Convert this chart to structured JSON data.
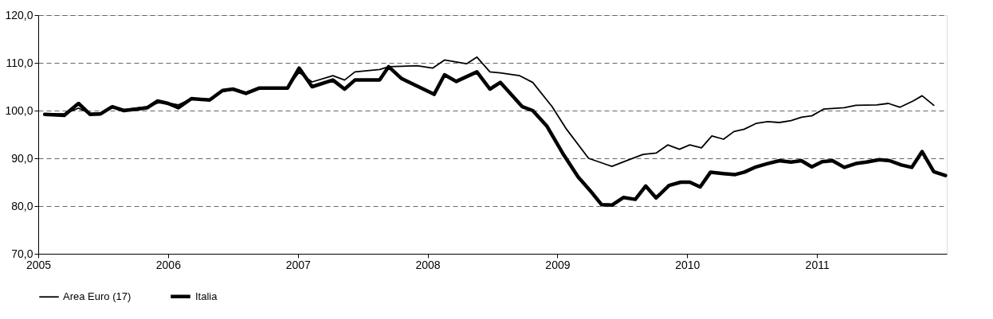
{
  "chart_data": {
    "type": "line",
    "xlim": [
      2005,
      2012
    ],
    "xticks": [
      2005,
      2006,
      2007,
      2008,
      2009,
      2010,
      2011
    ],
    "ylim": [
      70,
      120
    ],
    "yticks": [
      {
        "value": 70,
        "label": "70,0"
      },
      {
        "value": 80,
        "label": "80,0"
      },
      {
        "value": 90,
        "label": "90,0"
      },
      {
        "value": 100,
        "label": "100,0"
      },
      {
        "value": 110,
        "label": "110,0"
      },
      {
        "value": 120,
        "label": "120,0"
      }
    ],
    "grid": "y",
    "legend": "bottom",
    "marker": "none",
    "line_style": "solid",
    "series": [
      {
        "name": "Area Euro (17)",
        "color": "#000000",
        "x": [
          2005.05,
          2005.2,
          2005.31,
          2005.4,
          2005.48,
          2005.57,
          2005.66,
          2005.84,
          2005.92,
          2006.0,
          2006.08,
          2006.18,
          2006.32,
          2006.42,
          2006.5,
          2006.6,
          2006.7,
          2006.92,
          2007.01,
          2007.11,
          2007.27,
          2007.36,
          2007.44,
          2007.63,
          2007.7,
          2007.92,
          2008.04,
          2008.13,
          2008.3,
          2008.38,
          2008.48,
          2008.56,
          2008.71,
          2008.81,
          2008.96,
          2009.07,
          2009.24,
          2009.42,
          2009.55,
          2009.66,
          2009.76,
          2009.85,
          2009.94,
          2010.02,
          2010.11,
          2010.19,
          2010.28,
          2010.36,
          2010.44,
          2010.53,
          2010.62,
          2010.71,
          2010.8,
          2010.88,
          2010.96,
          2011.05,
          2011.21,
          2011.3,
          2011.46,
          2011.55,
          2011.64,
          2011.74,
          2011.81,
          2011.9
        ],
        "values": [
          99.3,
          99.3,
          100.5,
          99.4,
          99.5,
          100.6,
          100.2,
          100.8,
          101.6,
          101.6,
          101.2,
          102.5,
          102.4,
          104.0,
          104.4,
          103.8,
          104.6,
          104.9,
          108.0,
          106.0,
          107.3,
          106.4,
          108.1,
          108.6,
          109.2,
          109.4,
          108.9,
          110.6,
          109.8,
          111.2,
          108.1,
          107.9,
          107.3,
          105.9,
          100.8,
          96.1,
          90.0,
          88.3,
          89.7,
          90.8,
          91.1,
          92.8,
          91.9,
          92.8,
          92.2,
          94.7,
          94.0,
          95.6,
          96.1,
          97.3,
          97.7,
          97.5,
          97.9,
          98.6,
          98.9,
          100.3,
          100.6,
          101.1,
          101.2,
          101.5,
          100.7,
          102.0,
          103.1,
          101.1
        ]
      },
      {
        "name": "Italia",
        "color": "#000000",
        "x": [
          2005.05,
          2005.2,
          2005.31,
          2005.4,
          2005.48,
          2005.57,
          2005.66,
          2005.84,
          2005.92,
          2006.0,
          2006.08,
          2006.18,
          2006.32,
          2006.42,
          2006.5,
          2006.6,
          2006.7,
          2006.92,
          2007.01,
          2007.11,
          2007.27,
          2007.36,
          2007.44,
          2007.63,
          2007.7,
          2007.8,
          2008.05,
          2008.13,
          2008.22,
          2008.38,
          2008.48,
          2008.56,
          2008.73,
          2008.81,
          2008.92,
          2009.04,
          2009.16,
          2009.25,
          2009.34,
          2009.42,
          2009.51,
          2009.6,
          2009.68,
          2009.76,
          2009.86,
          2009.95,
          2010.02,
          2010.1,
          2010.18,
          2010.28,
          2010.37,
          2010.44,
          2010.53,
          2010.62,
          2010.71,
          2010.8,
          2010.88,
          2010.96,
          2011.04,
          2011.12,
          2011.21,
          2011.3,
          2011.38,
          2011.48,
          2011.56,
          2011.65,
          2011.73,
          2011.81,
          2011.9,
          2011.99
        ],
        "values": [
          99.2,
          99.0,
          101.5,
          99.2,
          99.3,
          100.8,
          100.0,
          100.6,
          102.0,
          101.5,
          100.6,
          102.5,
          102.2,
          104.2,
          104.5,
          103.6,
          104.7,
          104.7,
          108.9,
          105.0,
          106.4,
          104.5,
          106.4,
          106.4,
          109.2,
          106.7,
          103.4,
          107.5,
          106.1,
          108.1,
          104.5,
          105.9,
          100.8,
          100.0,
          96.7,
          91.1,
          86.1,
          83.3,
          80.3,
          80.2,
          81.8,
          81.4,
          84.2,
          81.7,
          84.3,
          85.0,
          85.0,
          84.0,
          87.1,
          86.8,
          86.6,
          87.1,
          88.2,
          88.9,
          89.5,
          89.2,
          89.5,
          88.2,
          89.3,
          89.5,
          88.1,
          88.9,
          89.2,
          89.7,
          89.5,
          88.6,
          88.1,
          91.4,
          87.2,
          86.4
        ]
      }
    ]
  }
}
